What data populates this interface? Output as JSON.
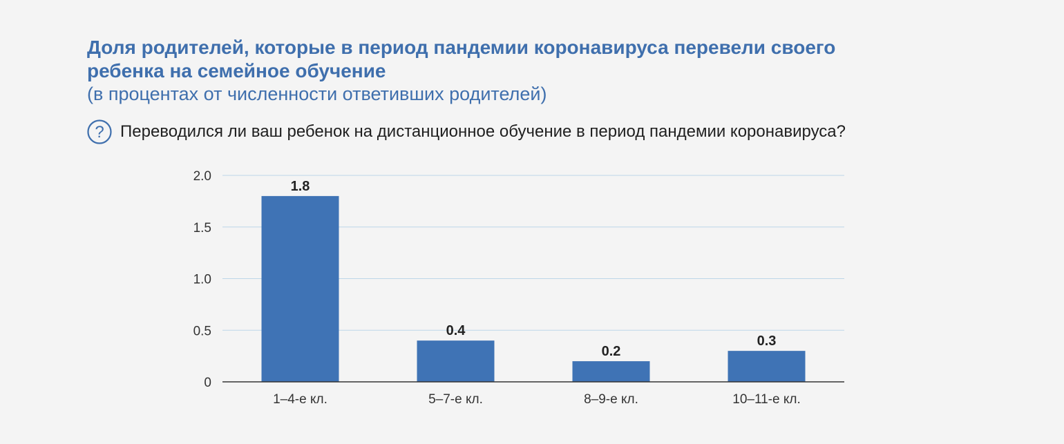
{
  "header": {
    "title": "Доля родителей, которые в период пандемии коронавируса перевели своего ребенка на семейное обучение",
    "subtitle": "(в процентах от численности ответивших родителей)",
    "question": "Переводился ли ваш ребенок на дистанционное обучение в период пандемии коронавируса?",
    "question_icon": "question-circle-icon"
  },
  "colors": {
    "bar": "#3f73b5",
    "title": "#3f6fad",
    "grid": "#bcd6e8",
    "axis": "#333333",
    "background": "#f4f4f4"
  },
  "chart_data": {
    "type": "bar",
    "categories": [
      "1–4-е кл.",
      "5–7-е кл.",
      "8–9-е кл.",
      "10–11-е кл."
    ],
    "values": [
      1.8,
      0.4,
      0.2,
      0.3
    ],
    "value_labels": [
      "1.8",
      "0.4",
      "0.2",
      "0.3"
    ],
    "y_ticks": [
      0,
      0.5,
      1.0,
      1.5,
      2.0
    ],
    "y_tick_labels": [
      "0",
      "0.5",
      "1.0",
      "1.5",
      "2.0"
    ],
    "ylim": [
      0,
      2.0
    ],
    "grid": true,
    "legend": "none"
  }
}
